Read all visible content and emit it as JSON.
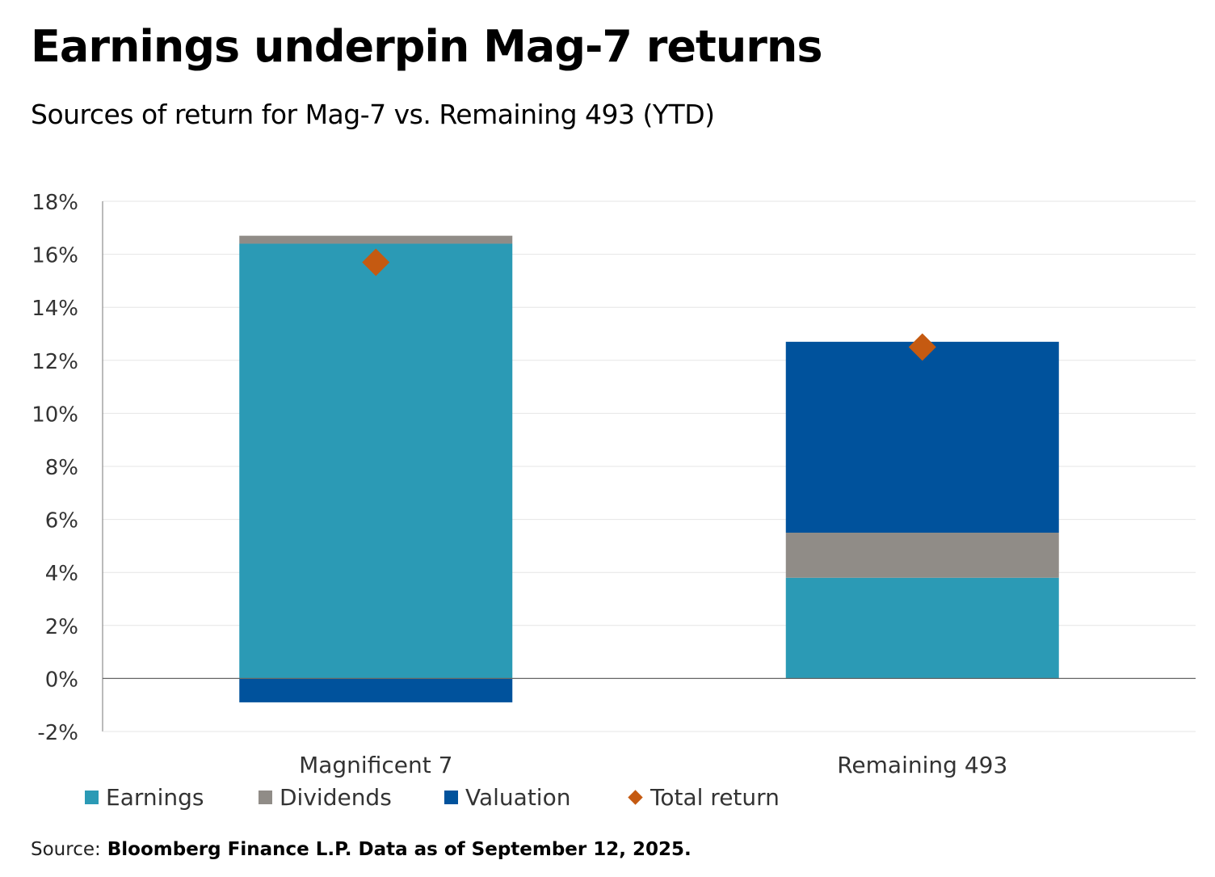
{
  "title": "Earnings underpin Mag-7 returns",
  "subtitle": "Sources of return for Mag-7 vs. Remaining 493 (YTD)",
  "source": {
    "label": "Source:",
    "text": " Bloomberg Finance L.P. Data as of September 12, 2025."
  },
  "legend": [
    {
      "label": "Earnings",
      "color": "#2B9AB5",
      "shape": "square"
    },
    {
      "label": "Dividends",
      "color": "#908C87",
      "shape": "square"
    },
    {
      "label": "Valuation",
      "color": "#00529C",
      "shape": "square"
    },
    {
      "label": "Total return",
      "color": "#C55A11",
      "shape": "diamond"
    }
  ],
  "chart_data": {
    "type": "bar",
    "stacked": true,
    "categories": [
      "Magnificent 7",
      "Remaining 493"
    ],
    "series": [
      {
        "name": "Earnings",
        "values": [
          16.4,
          3.8
        ],
        "color": "#2B9AB5"
      },
      {
        "name": "Dividends",
        "values": [
          0.3,
          1.7
        ],
        "color": "#908C87"
      },
      {
        "name": "Valuation",
        "values": [
          -0.9,
          7.2
        ],
        "color": "#00529C"
      }
    ],
    "total_return": {
      "name": "Total return",
      "values": [
        15.7,
        12.5
      ],
      "color": "#C55A11",
      "marker": "diamond"
    },
    "ylim": [
      -2,
      18
    ],
    "yticks": [
      -2,
      0,
      2,
      4,
      6,
      8,
      10,
      12,
      14,
      16,
      18
    ],
    "ytick_suffix": "%",
    "xlabel": "",
    "ylabel": "",
    "grid": true
  }
}
